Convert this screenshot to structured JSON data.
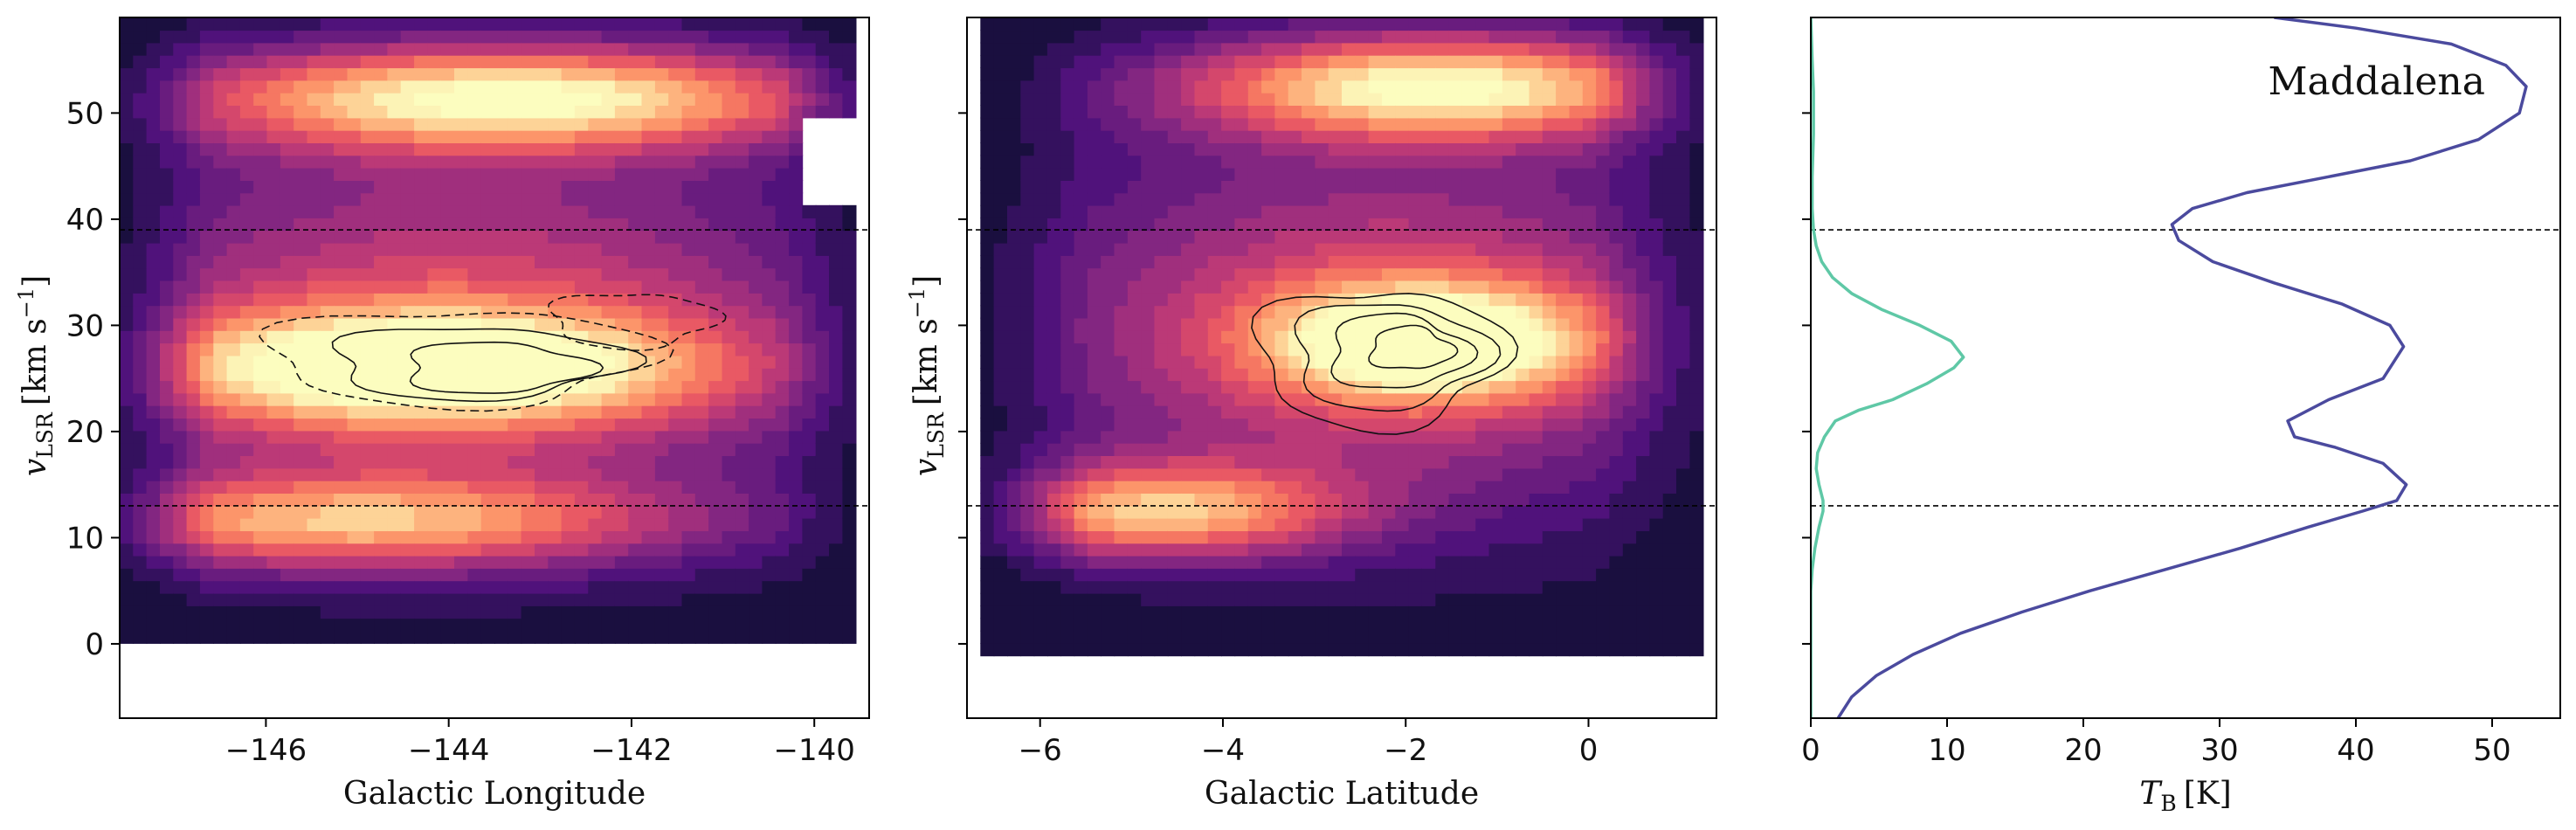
{
  "chart_data": [
    {
      "type": "heatmap",
      "panel": "left",
      "description_free": true,
      "xlabel": "Galactic Longitude",
      "ylabel_main": "v",
      "ylabel_sub": "LSR",
      "ylabel_units": "[km s",
      "ylabel_exp": "−1",
      "ylabel_close": "]",
      "xlim": [
        -147.6,
        -139.4
      ],
      "ylim": [
        -7,
        59
      ],
      "xticks": [
        -146,
        -144,
        -142,
        -140
      ],
      "xtick_labels": [
        "−146",
        "−144",
        "−142",
        "−140"
      ],
      "yticks": [
        0,
        10,
        20,
        30,
        40,
        50
      ],
      "ytick_labels": [
        "0",
        "10",
        "20",
        "30",
        "40",
        "50"
      ],
      "colormap": "magma",
      "hlines": [
        13,
        39
      ],
      "emission_peaks": [
        {
          "x": -143.5,
          "v": 51.5,
          "level": 1.0
        },
        {
          "x": -143.8,
          "v": 26.0,
          "level": 0.85
        },
        {
          "x": -145.0,
          "v": 11.5,
          "level": 0.7
        }
      ],
      "contour_center": {
        "x": -143.3,
        "v": 27.0
      }
    },
    {
      "type": "heatmap",
      "panel": "middle",
      "xlabel": "Galactic Latitude",
      "ylabel_main": "v",
      "ylabel_sub": "LSR",
      "ylabel_units": "[km s",
      "ylabel_exp": "−1",
      "ylabel_close": "]",
      "xlim": [
        -6.8,
        1.4
      ],
      "ylim": [
        -7,
        59
      ],
      "xticks": [
        -6,
        -4,
        -2,
        0
      ],
      "xtick_labels": [
        "−6",
        "−4",
        "−2",
        "0"
      ],
      "yticks": [
        0,
        10,
        20,
        30,
        40,
        50
      ],
      "colormap": "magma",
      "hlines": [
        13,
        39
      ],
      "emission_peaks": [
        {
          "x": -1.9,
          "v": 52.5,
          "level": 1.0
        },
        {
          "x": -1.6,
          "v": 29.0,
          "level": 0.9
        },
        {
          "x": -5.0,
          "v": 12.5,
          "level": 0.75
        }
      ],
      "contour_center": {
        "x": -2.3,
        "v": 27.0
      }
    },
    {
      "type": "line",
      "panel": "right",
      "xlabel_main": "T",
      "xlabel_sub": "B",
      "xlabel_units": "[K]",
      "xlim": [
        0,
        55
      ],
      "ylim": [
        -7,
        59
      ],
      "xticks": [
        0,
        10,
        20,
        30,
        40,
        50
      ],
      "xtick_labels": [
        "0",
        "10",
        "20",
        "30",
        "40",
        "50"
      ],
      "yticks": [
        0,
        10,
        20,
        30,
        40,
        50
      ],
      "hlines": [
        13,
        39
      ],
      "annotation": "Maddalena",
      "series": [
        {
          "color": "#4b4a9e",
          "x": [
            2.0,
            3.0,
            4.8,
            7.5,
            11.0,
            15.5,
            20.5,
            26.0,
            31.5,
            36.5,
            40.5,
            43.0,
            43.7,
            42.0,
            38.5,
            35.5,
            35.0,
            38.0,
            42.0,
            43.5,
            42.5,
            39.0,
            34.0,
            29.5,
            27.0,
            26.5,
            28.0,
            32.0,
            38.0,
            44.0,
            49.0,
            52.0,
            52.5,
            51.0,
            47.0,
            40.0,
            34.0
          ],
          "y": [
            -7.0,
            -5.0,
            -3.0,
            -1.0,
            1.0,
            3.0,
            5.0,
            7.0,
            9.0,
            11.0,
            12.5,
            13.5,
            15.0,
            17.0,
            18.5,
            19.5,
            21.0,
            23.0,
            25.0,
            28.0,
            30.0,
            32.0,
            34.0,
            36.0,
            38.0,
            39.5,
            41.0,
            42.5,
            44.0,
            45.5,
            47.5,
            50.0,
            52.5,
            54.5,
            56.5,
            58.0,
            59.0
          ]
        },
        {
          "color": "#5fc8a6",
          "x": [
            0.0,
            0.0,
            0.1,
            0.3,
            0.6,
            0.9,
            0.9,
            0.6,
            0.4,
            0.5,
            1.0,
            1.8,
            3.5,
            6.0,
            8.5,
            10.5,
            11.2,
            10.3,
            8.0,
            5.2,
            3.0,
            1.6,
            0.8,
            0.4,
            0.2,
            0.1,
            0.1,
            0.2,
            0.2,
            0.2,
            0.1,
            0.0
          ],
          "y": [
            -7.0,
            5.0,
            7.0,
            9.0,
            11.0,
            12.5,
            13.5,
            15.0,
            16.5,
            18.0,
            19.5,
            21.0,
            22.0,
            23.0,
            24.5,
            26.0,
            27.0,
            28.5,
            30.0,
            31.5,
            33.0,
            34.5,
            36.0,
            37.5,
            39.0,
            41.0,
            44.0,
            48.0,
            50.0,
            52.0,
            55.0,
            59.0
          ]
        }
      ]
    }
  ]
}
